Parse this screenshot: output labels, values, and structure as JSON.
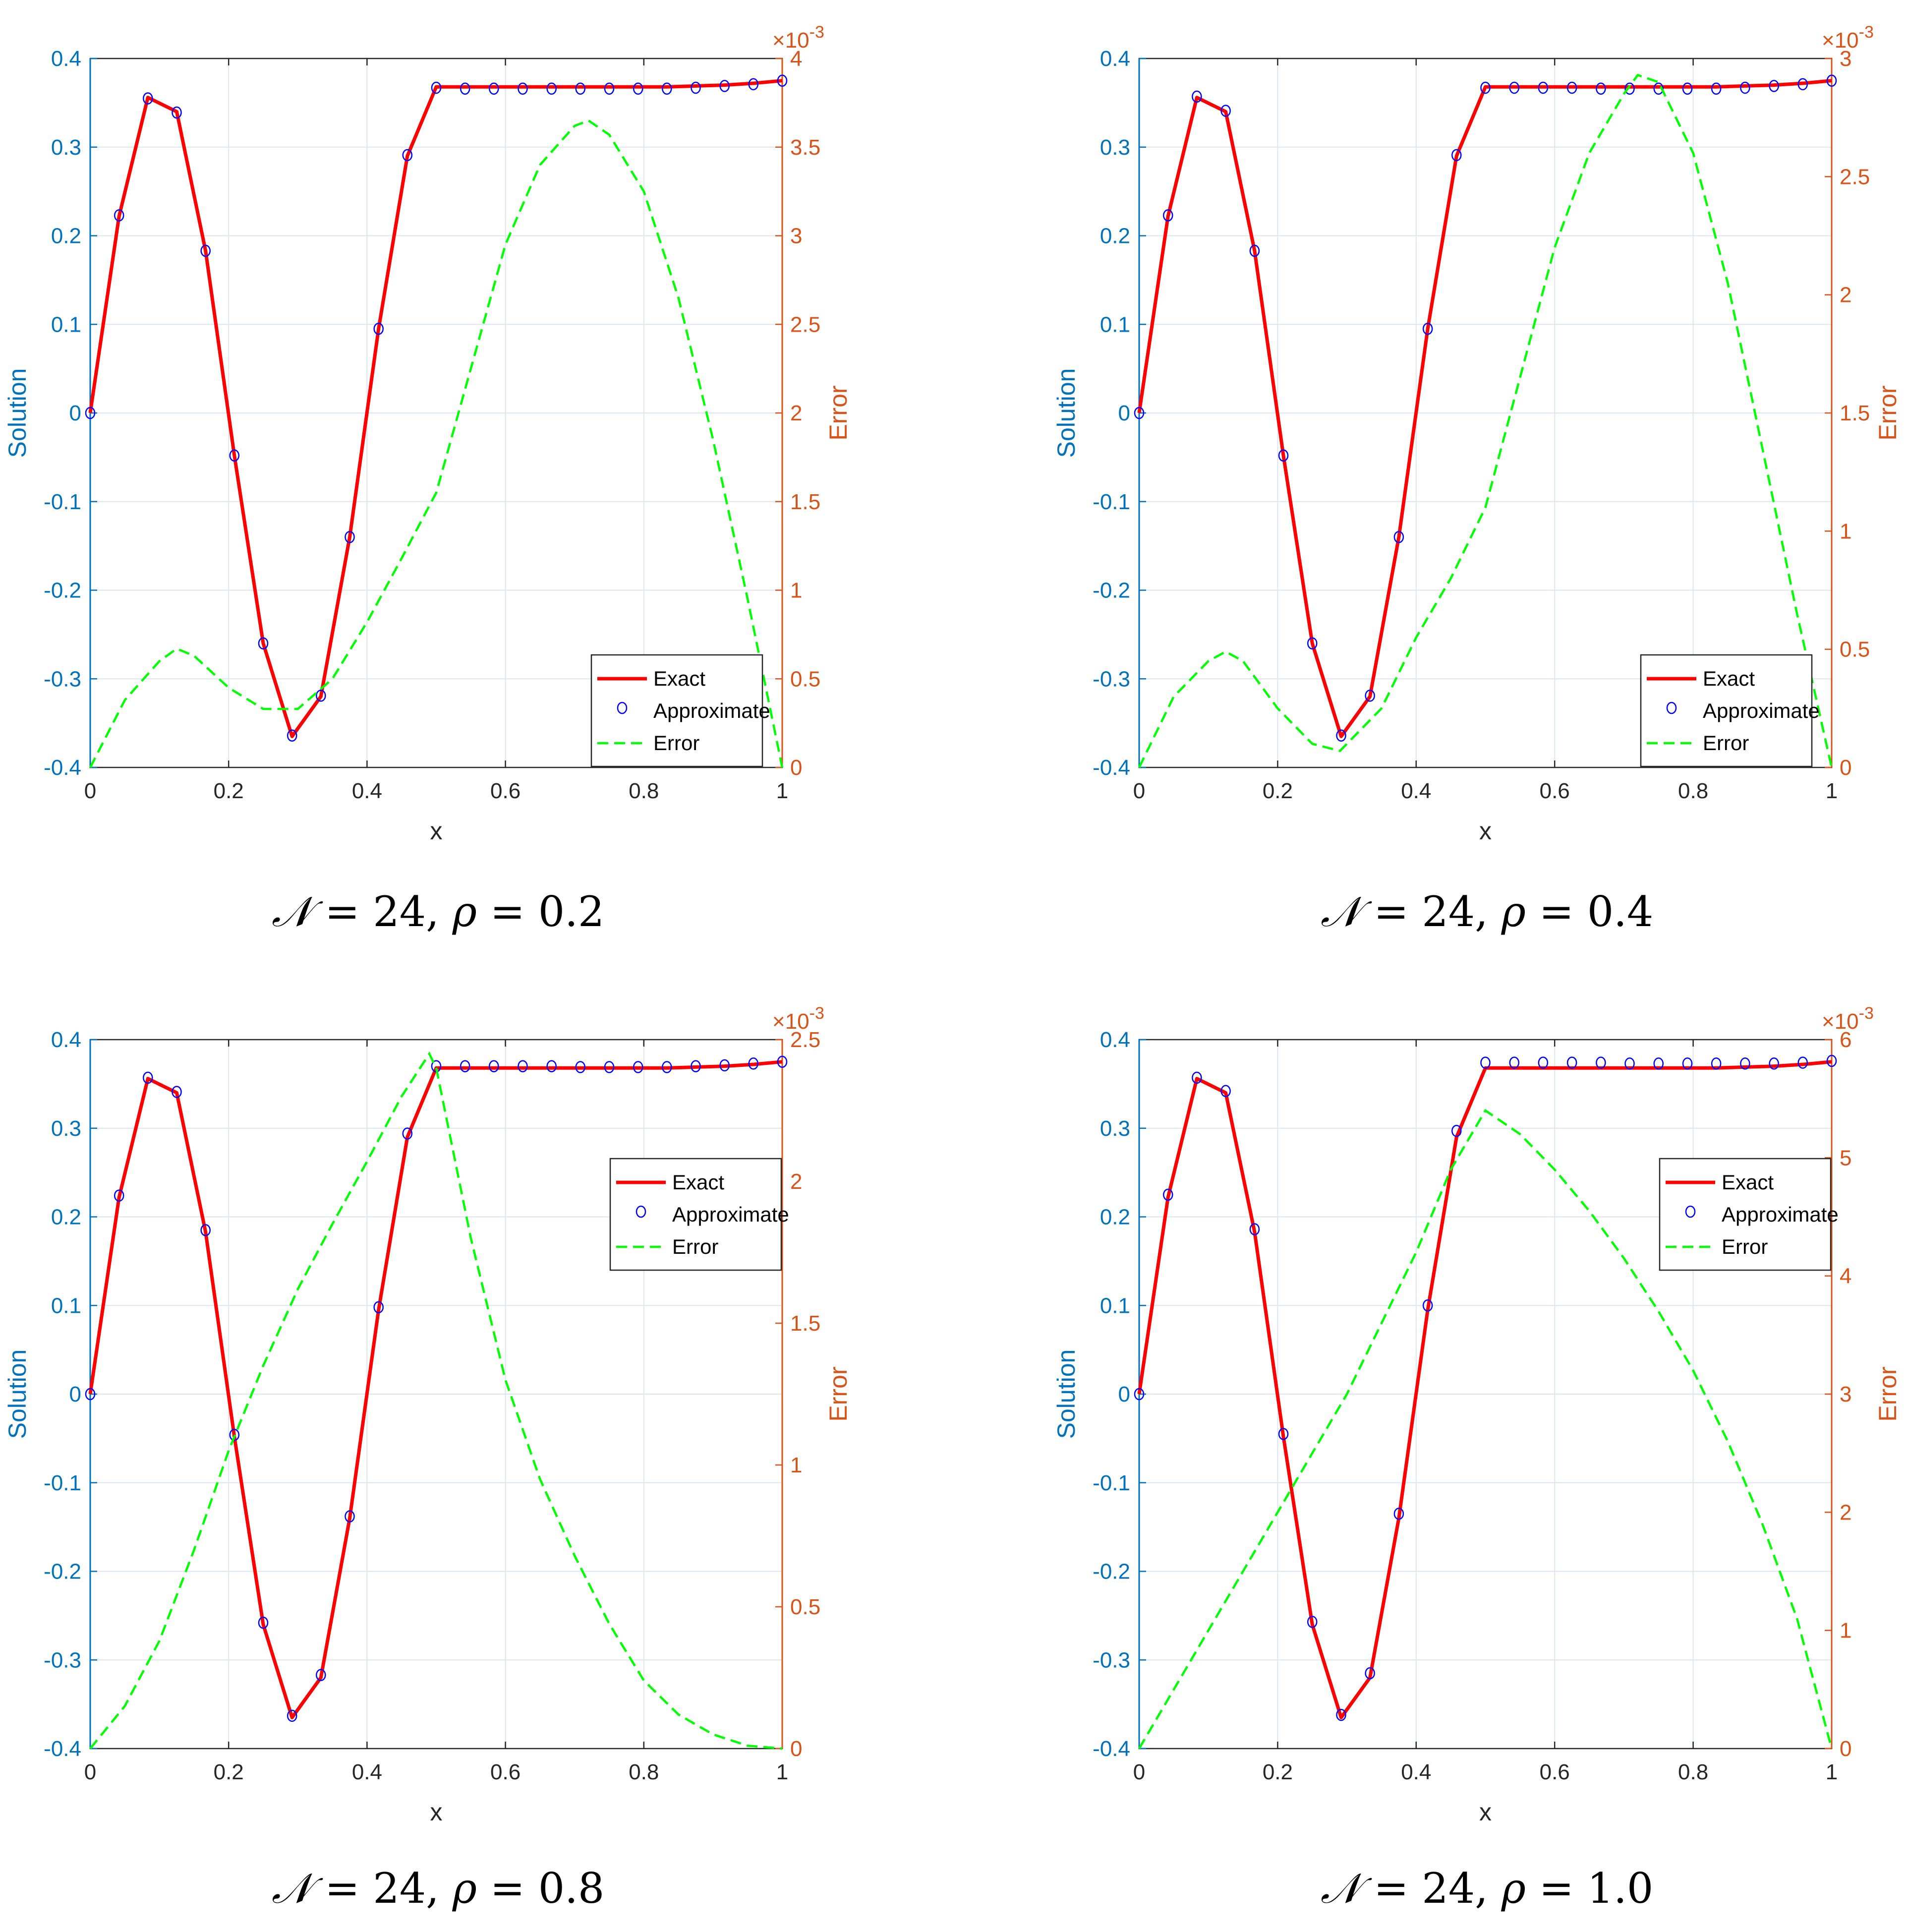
{
  "colors": {
    "left_axis": "#0072BD",
    "right_axis": "#D95319",
    "exact": "#FF0000",
    "approximate": "#0000FF",
    "error": "#00FF00",
    "grid": "#DCE6F0",
    "axes": "#262626"
  },
  "chart_data": [
    {
      "type": "line",
      "caption": {
        "n_symbol": "𝒩",
        "n_value": "= 24,",
        "rho_symbol": "ρ",
        "rho_value": "= 0.2"
      },
      "xlabel": "x",
      "ylabel": "Solution",
      "y2label": "Error",
      "xlim": [
        0,
        1
      ],
      "ylim": [
        -0.4,
        0.4
      ],
      "y2lim": [
        0,
        4
      ],
      "xticks": [
        "0",
        "0.2",
        "0.4",
        "0.6",
        "0.8",
        "1"
      ],
      "yticks": [
        "-0.4",
        "-0.3",
        "-0.2",
        "-0.1",
        "0",
        "0.1",
        "0.2",
        "0.3",
        "0.4"
      ],
      "y2ticks": [
        "0",
        "0.5",
        "1",
        "1.5",
        "2",
        "2.5",
        "3",
        "3.5",
        "4"
      ],
      "y2_exponent": "×10-3",
      "legend": {
        "position": "bottom-right",
        "entries": [
          "Exact",
          "Approximate",
          "Error"
        ]
      },
      "series": [
        {
          "name": "Exact",
          "axis": "left",
          "x": [
            0,
            0.0417,
            0.0833,
            0.125,
            0.1667,
            0.2083,
            0.25,
            0.2917,
            0.3333,
            0.375,
            0.4167,
            0.4583,
            0.5,
            0.5417,
            0.5833,
            0.625,
            0.6667,
            0.7083,
            0.75,
            0.7917,
            0.8333,
            0.875,
            0.9167,
            0.9583,
            1
          ],
          "values": [
            0,
            0.222,
            0.356,
            0.34,
            0.183,
            -0.048,
            -0.26,
            -0.365,
            -0.32,
            -0.14,
            0.095,
            0.29,
            0.368,
            0.368,
            0.368,
            0.368,
            0.368,
            0.368,
            0.368,
            0.368,
            0.368,
            0.369,
            0.37,
            0.372,
            0.375
          ]
        },
        {
          "name": "Approximate",
          "axis": "left",
          "x": [
            0,
            0.0417,
            0.0833,
            0.125,
            0.1667,
            0.2083,
            0.25,
            0.2917,
            0.3333,
            0.375,
            0.4167,
            0.4583,
            0.5,
            0.5417,
            0.5833,
            0.625,
            0.6667,
            0.7083,
            0.75,
            0.7917,
            0.8333,
            0.875,
            0.9167,
            0.9583,
            1
          ],
          "values": [
            0,
            0.223,
            0.355,
            0.339,
            0.183,
            -0.048,
            -0.26,
            -0.364,
            -0.319,
            -0.14,
            0.095,
            0.291,
            0.367,
            0.366,
            0.366,
            0.366,
            0.366,
            0.366,
            0.366,
            0.366,
            0.366,
            0.367,
            0.369,
            0.371,
            0.375
          ]
        },
        {
          "name": "Error",
          "axis": "right",
          "x": [
            0,
            0.05,
            0.1,
            0.125,
            0.15,
            0.2,
            0.25,
            0.3,
            0.35,
            0.4,
            0.45,
            0.5,
            0.55,
            0.6,
            0.65,
            0.7,
            0.72,
            0.75,
            0.8,
            0.85,
            0.9,
            0.95,
            1
          ],
          "values": [
            0,
            0.38,
            0.6,
            0.67,
            0.63,
            0.45,
            0.33,
            0.33,
            0.5,
            0.82,
            1.18,
            1.55,
            2.25,
            2.95,
            3.4,
            3.62,
            3.65,
            3.57,
            3.25,
            2.65,
            1.85,
            0.95,
            0
          ]
        }
      ]
    },
    {
      "type": "line",
      "caption": {
        "n_symbol": "𝒩",
        "n_value": "= 24,",
        "rho_symbol": "ρ",
        "rho_value": "= 0.4"
      },
      "xlabel": "x",
      "ylabel": "Solution",
      "y2label": "Error",
      "xlim": [
        0,
        1
      ],
      "ylim": [
        -0.4,
        0.4
      ],
      "y2lim": [
        0,
        3
      ],
      "xticks": [
        "0",
        "0.2",
        "0.4",
        "0.6",
        "0.8",
        "1"
      ],
      "yticks": [
        "-0.4",
        "-0.3",
        "-0.2",
        "-0.1",
        "0",
        "0.1",
        "0.2",
        "0.3",
        "0.4"
      ],
      "y2ticks": [
        "0",
        "0.5",
        "1",
        "1.5",
        "2",
        "2.5",
        "3"
      ],
      "y2_exponent": "×10-3",
      "legend": {
        "position": "bottom-right",
        "entries": [
          "Exact",
          "Approximate",
          "Error"
        ]
      },
      "series": [
        {
          "name": "Exact",
          "axis": "left",
          "x": [
            0,
            0.0417,
            0.0833,
            0.125,
            0.1667,
            0.2083,
            0.25,
            0.2917,
            0.3333,
            0.375,
            0.4167,
            0.4583,
            0.5,
            0.5417,
            0.5833,
            0.625,
            0.6667,
            0.7083,
            0.75,
            0.7917,
            0.8333,
            0.875,
            0.9167,
            0.9583,
            1
          ],
          "values": [
            0,
            0.222,
            0.356,
            0.34,
            0.183,
            -0.048,
            -0.26,
            -0.365,
            -0.32,
            -0.14,
            0.095,
            0.29,
            0.368,
            0.368,
            0.368,
            0.368,
            0.368,
            0.368,
            0.368,
            0.368,
            0.368,
            0.369,
            0.37,
            0.372,
            0.375
          ]
        },
        {
          "name": "Approximate",
          "axis": "left",
          "x": [
            0,
            0.0417,
            0.0833,
            0.125,
            0.1667,
            0.2083,
            0.25,
            0.2917,
            0.3333,
            0.375,
            0.4167,
            0.4583,
            0.5,
            0.5417,
            0.5833,
            0.625,
            0.6667,
            0.7083,
            0.75,
            0.7917,
            0.8333,
            0.875,
            0.9167,
            0.9583,
            1
          ],
          "values": [
            0,
            0.223,
            0.357,
            0.341,
            0.183,
            -0.048,
            -0.26,
            -0.364,
            -0.319,
            -0.14,
            0.095,
            0.291,
            0.367,
            0.367,
            0.367,
            0.367,
            0.366,
            0.366,
            0.366,
            0.366,
            0.366,
            0.367,
            0.369,
            0.371,
            0.375
          ]
        },
        {
          "name": "Error",
          "axis": "right",
          "x": [
            0,
            0.05,
            0.1,
            0.125,
            0.15,
            0.2,
            0.25,
            0.29,
            0.35,
            0.4,
            0.45,
            0.5,
            0.55,
            0.6,
            0.65,
            0.7,
            0.72,
            0.75,
            0.8,
            0.85,
            0.9,
            0.95,
            1
          ],
          "values": [
            0,
            0.3,
            0.45,
            0.49,
            0.45,
            0.25,
            0.1,
            0.07,
            0.25,
            0.55,
            0.8,
            1.1,
            1.65,
            2.2,
            2.6,
            2.85,
            2.93,
            2.9,
            2.6,
            2.05,
            1.35,
            0.65,
            0
          ]
        }
      ]
    },
    {
      "type": "line",
      "caption": {
        "n_symbol": "𝒩",
        "n_value": "= 24,",
        "rho_symbol": "ρ",
        "rho_value": "= 0.8"
      },
      "xlabel": "x",
      "ylabel": "Solution",
      "y2label": "Error",
      "xlim": [
        0,
        1
      ],
      "ylim": [
        -0.4,
        0.4
      ],
      "y2lim": [
        0,
        2.5
      ],
      "xticks": [
        "0",
        "0.2",
        "0.4",
        "0.6",
        "0.8",
        "1"
      ],
      "yticks": [
        "-0.4",
        "-0.3",
        "-0.2",
        "-0.1",
        "0",
        "0.1",
        "0.2",
        "0.3",
        "0.4"
      ],
      "y2ticks": [
        "0",
        "0.5",
        "1",
        "1.5",
        "2",
        "2.5"
      ],
      "y2_exponent": "×10-3",
      "legend": {
        "position": "top-right",
        "entries": [
          "Exact",
          "Approximate",
          "Error"
        ]
      },
      "series": [
        {
          "name": "Exact",
          "axis": "left",
          "x": [
            0,
            0.0417,
            0.0833,
            0.125,
            0.1667,
            0.2083,
            0.25,
            0.2917,
            0.3333,
            0.375,
            0.4167,
            0.4583,
            0.5,
            0.5417,
            0.5833,
            0.625,
            0.6667,
            0.7083,
            0.75,
            0.7917,
            0.8333,
            0.875,
            0.9167,
            0.9583,
            1
          ],
          "values": [
            0,
            0.222,
            0.356,
            0.34,
            0.183,
            -0.048,
            -0.26,
            -0.365,
            -0.32,
            -0.14,
            0.095,
            0.29,
            0.368,
            0.368,
            0.368,
            0.368,
            0.368,
            0.368,
            0.368,
            0.368,
            0.368,
            0.369,
            0.37,
            0.372,
            0.375
          ]
        },
        {
          "name": "Approximate",
          "axis": "left",
          "x": [
            0,
            0.0417,
            0.0833,
            0.125,
            0.1667,
            0.2083,
            0.25,
            0.2917,
            0.3333,
            0.375,
            0.4167,
            0.4583,
            0.5,
            0.5417,
            0.5833,
            0.625,
            0.6667,
            0.7083,
            0.75,
            0.7917,
            0.8333,
            0.875,
            0.9167,
            0.9583,
            1
          ],
          "values": [
            0,
            0.224,
            0.357,
            0.341,
            0.185,
            -0.046,
            -0.258,
            -0.363,
            -0.317,
            -0.138,
            0.098,
            0.294,
            0.37,
            0.37,
            0.37,
            0.37,
            0.37,
            0.369,
            0.369,
            0.369,
            0.369,
            0.37,
            0.371,
            0.373,
            0.375
          ]
        },
        {
          "name": "Error",
          "axis": "right",
          "x": [
            0,
            0.05,
            0.1,
            0.15,
            0.2,
            0.25,
            0.3,
            0.35,
            0.4,
            0.45,
            0.49,
            0.5,
            0.55,
            0.6,
            0.65,
            0.7,
            0.75,
            0.8,
            0.85,
            0.9,
            0.95,
            1
          ],
          "values": [
            0,
            0.15,
            0.38,
            0.7,
            1.05,
            1.35,
            1.62,
            1.85,
            2.07,
            2.3,
            2.45,
            2.4,
            1.8,
            1.3,
            0.95,
            0.68,
            0.44,
            0.24,
            0.12,
            0.05,
            0.01,
            0
          ]
        }
      ]
    },
    {
      "type": "line",
      "caption": {
        "n_symbol": "𝒩",
        "n_value": "= 24,",
        "rho_symbol": "ρ",
        "rho_value": "= 1.0"
      },
      "xlabel": "x",
      "ylabel": "Solution",
      "y2label": "Error",
      "xlim": [
        0,
        1
      ],
      "ylim": [
        -0.4,
        0.4
      ],
      "y2lim": [
        0,
        6
      ],
      "xticks": [
        "0",
        "0.2",
        "0.4",
        "0.6",
        "0.8",
        "1"
      ],
      "yticks": [
        "-0.4",
        "-0.3",
        "-0.2",
        "-0.1",
        "0",
        "0.1",
        "0.2",
        "0.3",
        "0.4"
      ],
      "y2ticks": [
        "0",
        "1",
        "2",
        "3",
        "4",
        "5",
        "6"
      ],
      "y2_exponent": "×10-3",
      "legend": {
        "position": "top-right",
        "entries": [
          "Exact",
          "Approximate",
          "Error"
        ]
      },
      "series": [
        {
          "name": "Exact",
          "axis": "left",
          "x": [
            0,
            0.0417,
            0.0833,
            0.125,
            0.1667,
            0.2083,
            0.25,
            0.2917,
            0.3333,
            0.375,
            0.4167,
            0.4583,
            0.5,
            0.5417,
            0.5833,
            0.625,
            0.6667,
            0.7083,
            0.75,
            0.7917,
            0.8333,
            0.875,
            0.9167,
            0.9583,
            1
          ],
          "values": [
            0,
            0.222,
            0.356,
            0.34,
            0.183,
            -0.048,
            -0.26,
            -0.365,
            -0.32,
            -0.14,
            0.095,
            0.29,
            0.368,
            0.368,
            0.368,
            0.368,
            0.368,
            0.368,
            0.368,
            0.368,
            0.368,
            0.369,
            0.37,
            0.372,
            0.375
          ]
        },
        {
          "name": "Approximate",
          "axis": "left",
          "x": [
            0,
            0.0417,
            0.0833,
            0.125,
            0.1667,
            0.2083,
            0.25,
            0.2917,
            0.3333,
            0.375,
            0.4167,
            0.4583,
            0.5,
            0.5417,
            0.5833,
            0.625,
            0.6667,
            0.7083,
            0.75,
            0.7917,
            0.8333,
            0.875,
            0.9167,
            0.9583,
            1
          ],
          "values": [
            0,
            0.225,
            0.357,
            0.342,
            0.186,
            -0.045,
            -0.257,
            -0.362,
            -0.315,
            -0.135,
            0.1,
            0.297,
            0.374,
            0.374,
            0.374,
            0.374,
            0.374,
            0.373,
            0.373,
            0.373,
            0.373,
            0.373,
            0.373,
            0.374,
            0.376
          ]
        },
        {
          "name": "Error",
          "axis": "right",
          "x": [
            0,
            0.1,
            0.2,
            0.3,
            0.4,
            0.45,
            0.5,
            0.55,
            0.6,
            0.65,
            0.7,
            0.75,
            0.8,
            0.85,
            0.9,
            0.95,
            1
          ],
          "values": [
            0,
            1.0,
            2.0,
            3.0,
            4.2,
            4.9,
            5.4,
            5.2,
            4.9,
            4.55,
            4.15,
            3.7,
            3.2,
            2.6,
            1.9,
            1.1,
            0
          ]
        }
      ]
    }
  ]
}
